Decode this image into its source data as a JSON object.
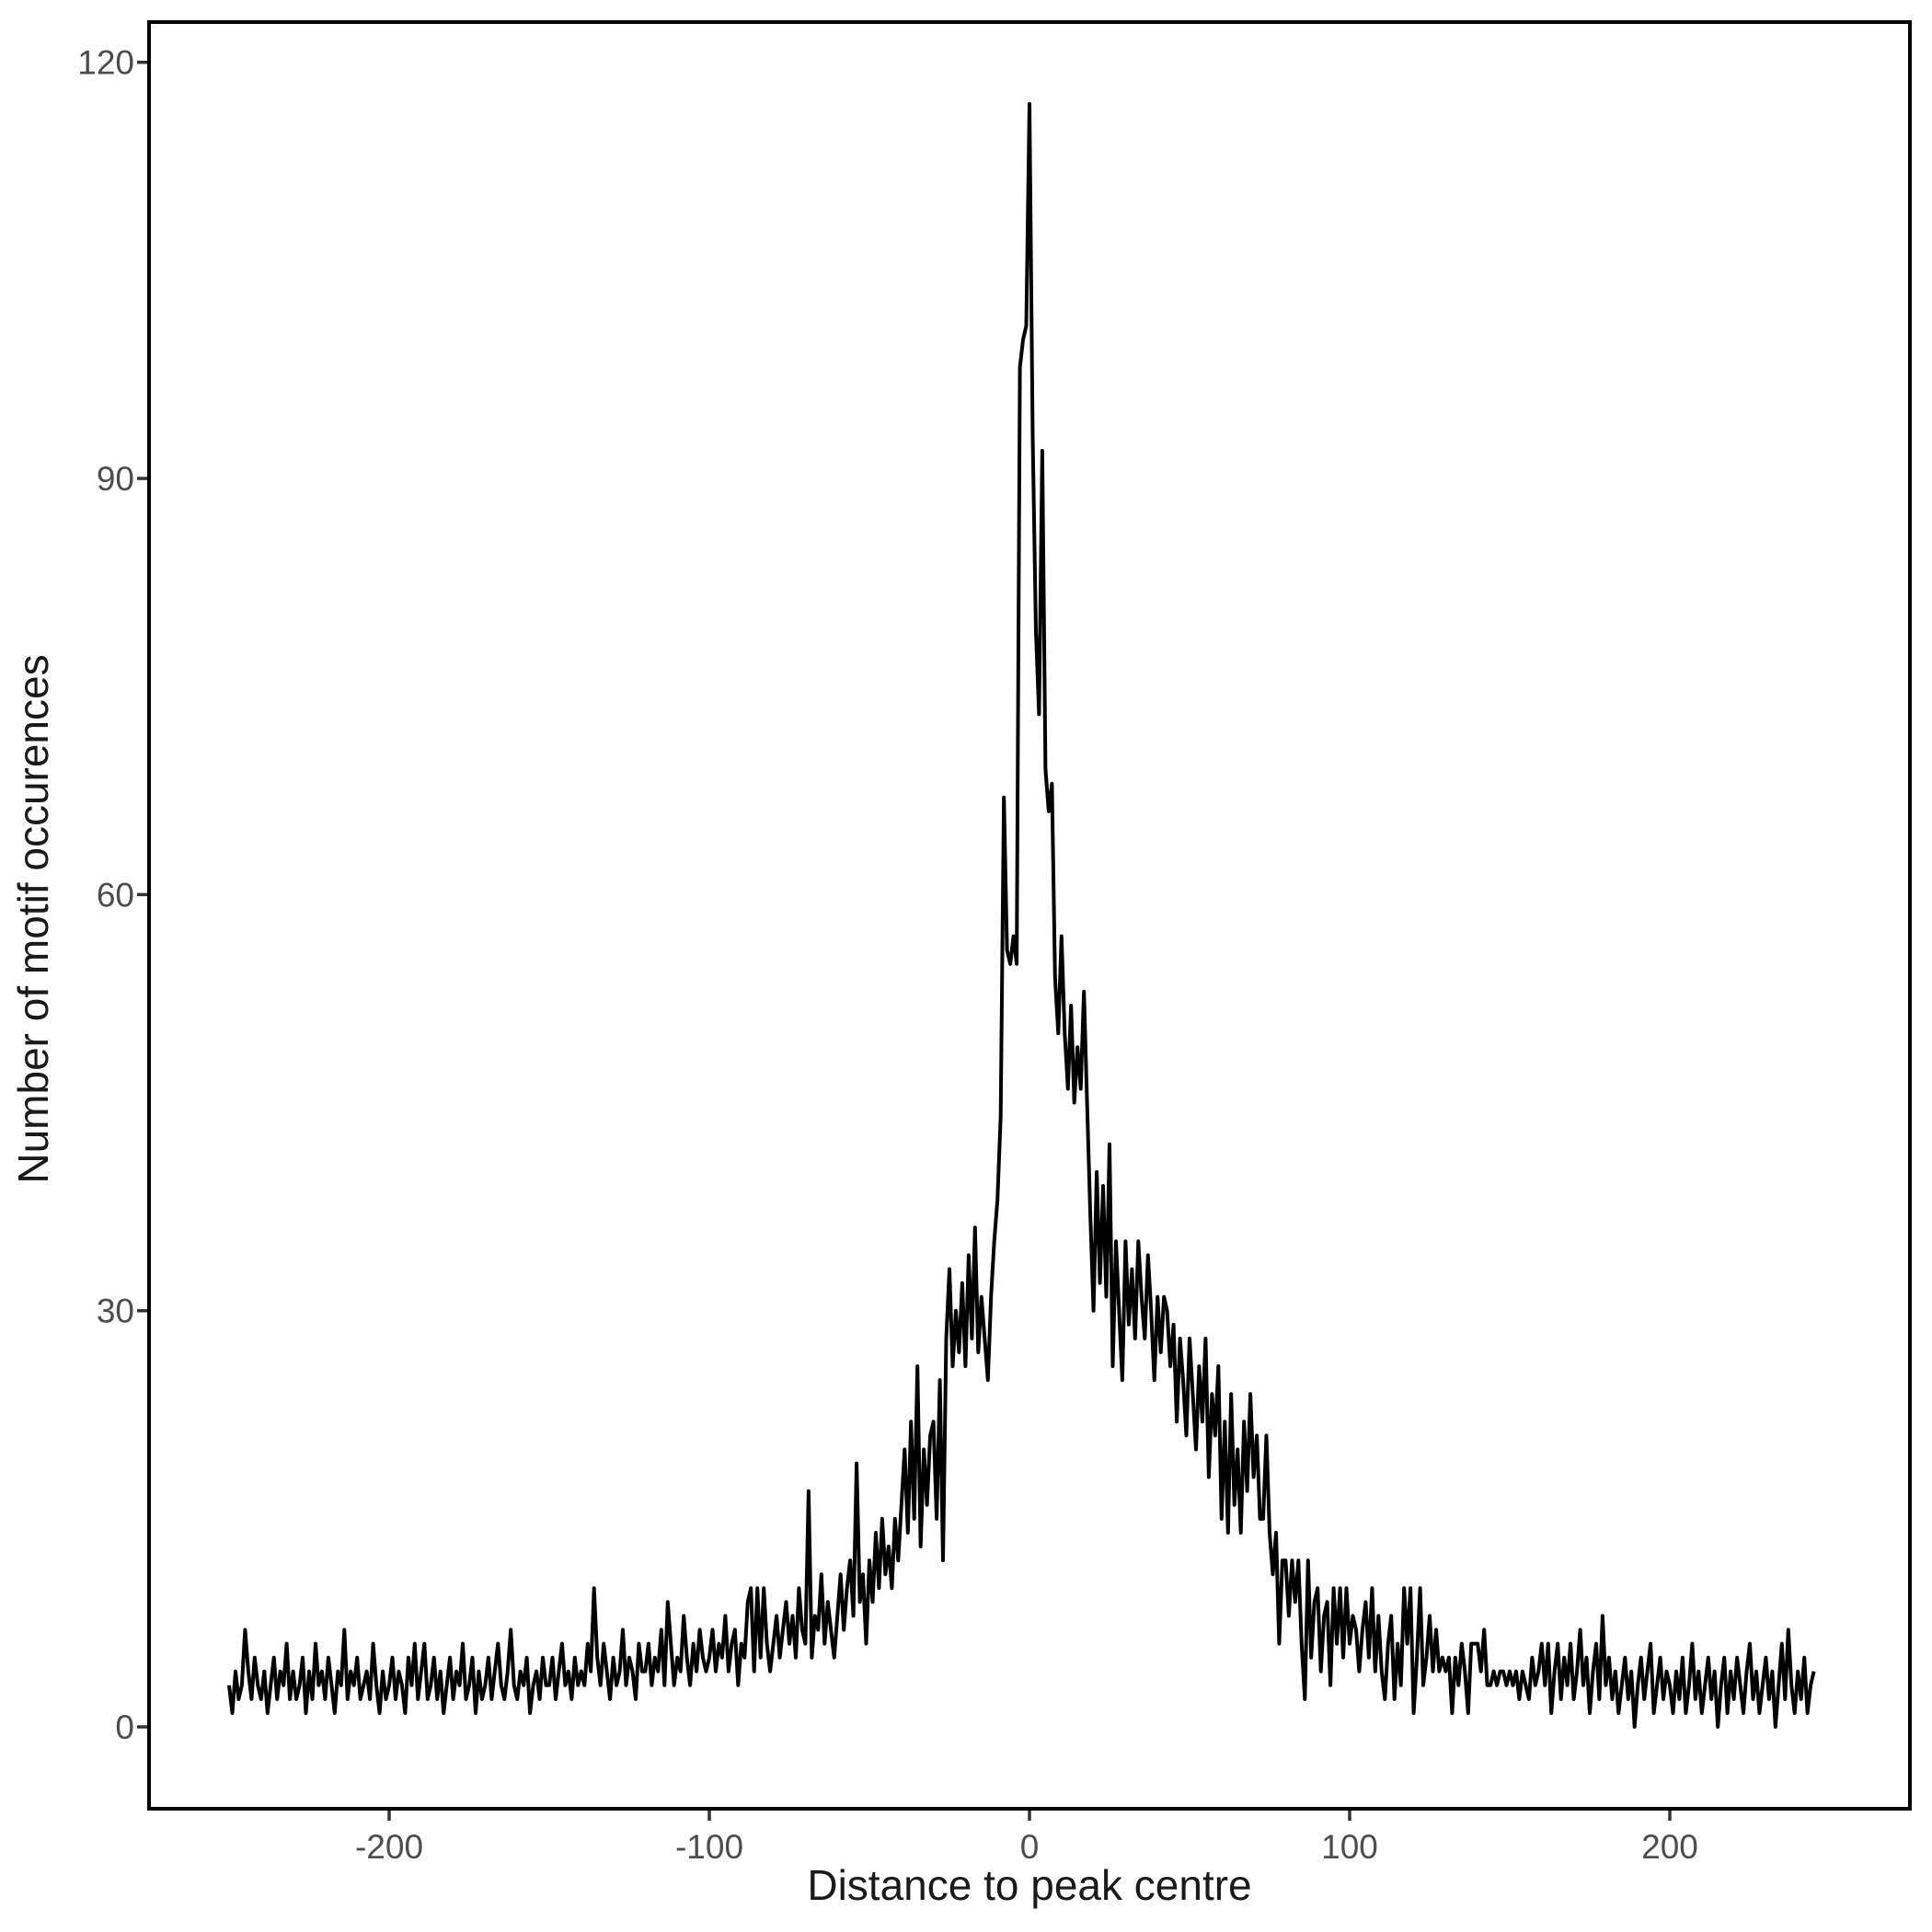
{
  "chart_data": {
    "type": "line",
    "title": "",
    "xlabel": "Distance to peak centre",
    "ylabel": "Number of motif occurences",
    "legend_position": "none",
    "grid": false,
    "background_color": "#FFFFFF",
    "panel_border_color": "#000000",
    "line_color": "#000000",
    "tick_color": "#333333",
    "tick_label_color": "#4D4D4D",
    "axis_title_color": "#1A1A1A",
    "x_ticks": [
      -200,
      -100,
      0,
      100,
      200
    ],
    "y_ticks": [
      0,
      30,
      60,
      90,
      120
    ],
    "xlim": [
      -275,
      275
    ],
    "ylim": [
      -5.9,
      122.9
    ],
    "x_start": -250,
    "x_step": 1,
    "peak_x": 0,
    "peak_value": 117,
    "values": [
      3,
      1,
      4,
      2,
      3,
      7,
      4,
      2,
      5,
      3,
      2,
      4,
      1,
      3,
      5,
      2,
      4,
      3,
      6,
      2,
      4,
      2,
      3,
      5,
      1,
      4,
      2,
      6,
      3,
      4,
      2,
      5,
      3,
      1,
      4,
      3,
      7,
      2,
      4,
      3,
      5,
      2,
      3,
      4,
      2,
      6,
      3,
      1,
      4,
      2,
      3,
      5,
      2,
      4,
      3,
      1,
      5,
      3,
      6,
      2,
      4,
      6,
      2,
      3,
      5,
      2,
      4,
      1,
      3,
      5,
      2,
      4,
      3,
      6,
      2,
      3,
      5,
      1,
      4,
      2,
      3,
      5,
      2,
      4,
      6,
      3,
      2,
      4,
      7,
      3,
      2,
      4,
      3,
      5,
      1,
      3,
      4,
      2,
      5,
      3,
      3,
      5,
      2,
      4,
      6,
      3,
      4,
      2,
      5,
      3,
      4,
      3,
      6,
      4,
      10,
      5,
      3,
      6,
      4,
      2,
      5,
      3,
      4,
      7,
      3,
      5,
      4,
      2,
      6,
      4,
      4,
      6,
      3,
      5,
      4,
      7,
      3,
      9,
      6,
      3,
      5,
      4,
      8,
      5,
      3,
      6,
      4,
      7,
      5,
      4,
      5,
      7,
      4,
      6,
      5,
      8,
      4,
      6,
      7,
      3,
      6,
      5,
      9,
      10,
      4,
      10,
      5,
      10,
      6,
      4,
      6,
      8,
      5,
      7,
      9,
      6,
      8,
      5,
      10,
      7,
      6,
      17,
      5,
      8,
      7,
      11,
      6,
      9,
      7,
      5,
      8,
      11,
      7,
      10,
      12,
      8,
      19,
      9,
      11,
      6,
      12,
      9,
      14,
      10,
      15,
      11,
      13,
      10,
      15,
      12,
      16,
      20,
      14,
      22,
      15,
      26,
      13,
      20,
      16,
      21,
      22,
      15,
      25,
      12,
      28,
      33,
      26,
      30,
      27,
      32,
      26,
      34,
      28,
      36,
      27,
      31,
      28,
      25,
      31,
      35,
      38,
      44,
      67,
      56,
      55,
      57,
      55,
      98,
      100,
      101,
      117,
      93,
      79,
      73,
      92,
      69,
      66,
      68,
      54,
      50,
      57,
      50,
      46,
      52,
      45,
      49,
      46,
      53,
      45,
      37,
      30,
      40,
      32,
      39,
      31,
      42,
      26,
      35,
      30,
      25,
      35,
      29,
      33,
      28,
      35,
      31,
      28,
      34,
      30,
      25,
      31,
      27,
      31,
      30,
      26,
      29,
      22,
      28,
      25,
      21,
      28,
      24,
      20,
      26,
      22,
      28,
      18,
      24,
      21,
      26,
      15,
      22,
      14,
      24,
      16,
      20,
      14,
      22,
      17,
      24,
      18,
      21,
      15,
      15,
      21,
      14,
      11,
      14,
      6,
      12,
      12,
      8,
      12,
      9,
      12,
      6,
      2,
      12,
      5,
      9,
      10,
      4,
      8,
      9,
      3,
      10,
      6,
      10,
      5,
      10,
      6,
      8,
      7,
      4,
      7,
      9,
      5,
      10,
      4,
      8,
      4,
      2,
      6,
      8,
      2,
      6,
      3,
      10,
      6,
      10,
      1,
      5,
      10,
      3,
      5,
      8,
      4,
      7,
      4,
      5,
      4,
      5,
      1,
      5,
      3,
      6,
      4,
      1,
      6,
      6,
      6,
      4,
      7,
      3,
      3,
      4,
      3,
      4,
      4,
      3,
      4,
      3,
      4,
      2,
      4,
      3,
      2,
      5,
      3,
      4,
      6,
      3,
      6,
      1,
      4,
      6,
      2,
      5,
      3,
      6,
      2,
      4,
      7,
      3,
      5,
      1,
      4,
      6,
      2,
      8,
      3,
      5,
      2,
      4,
      1,
      3,
      5,
      2,
      4,
      0,
      3,
      5,
      2,
      4,
      6,
      1,
      3,
      5,
      2,
      4,
      3,
      1,
      4,
      2,
      5,
      1,
      3,
      6,
      2,
      4,
      1,
      3,
      5,
      2,
      4,
      0,
      3,
      5,
      1,
      4,
      2,
      5,
      3,
      1,
      4,
      6,
      2,
      4,
      1,
      3,
      5,
      2,
      4,
      0,
      3,
      6,
      2,
      7,
      3,
      1,
      4,
      2,
      5,
      1,
      3,
      4
    ]
  }
}
